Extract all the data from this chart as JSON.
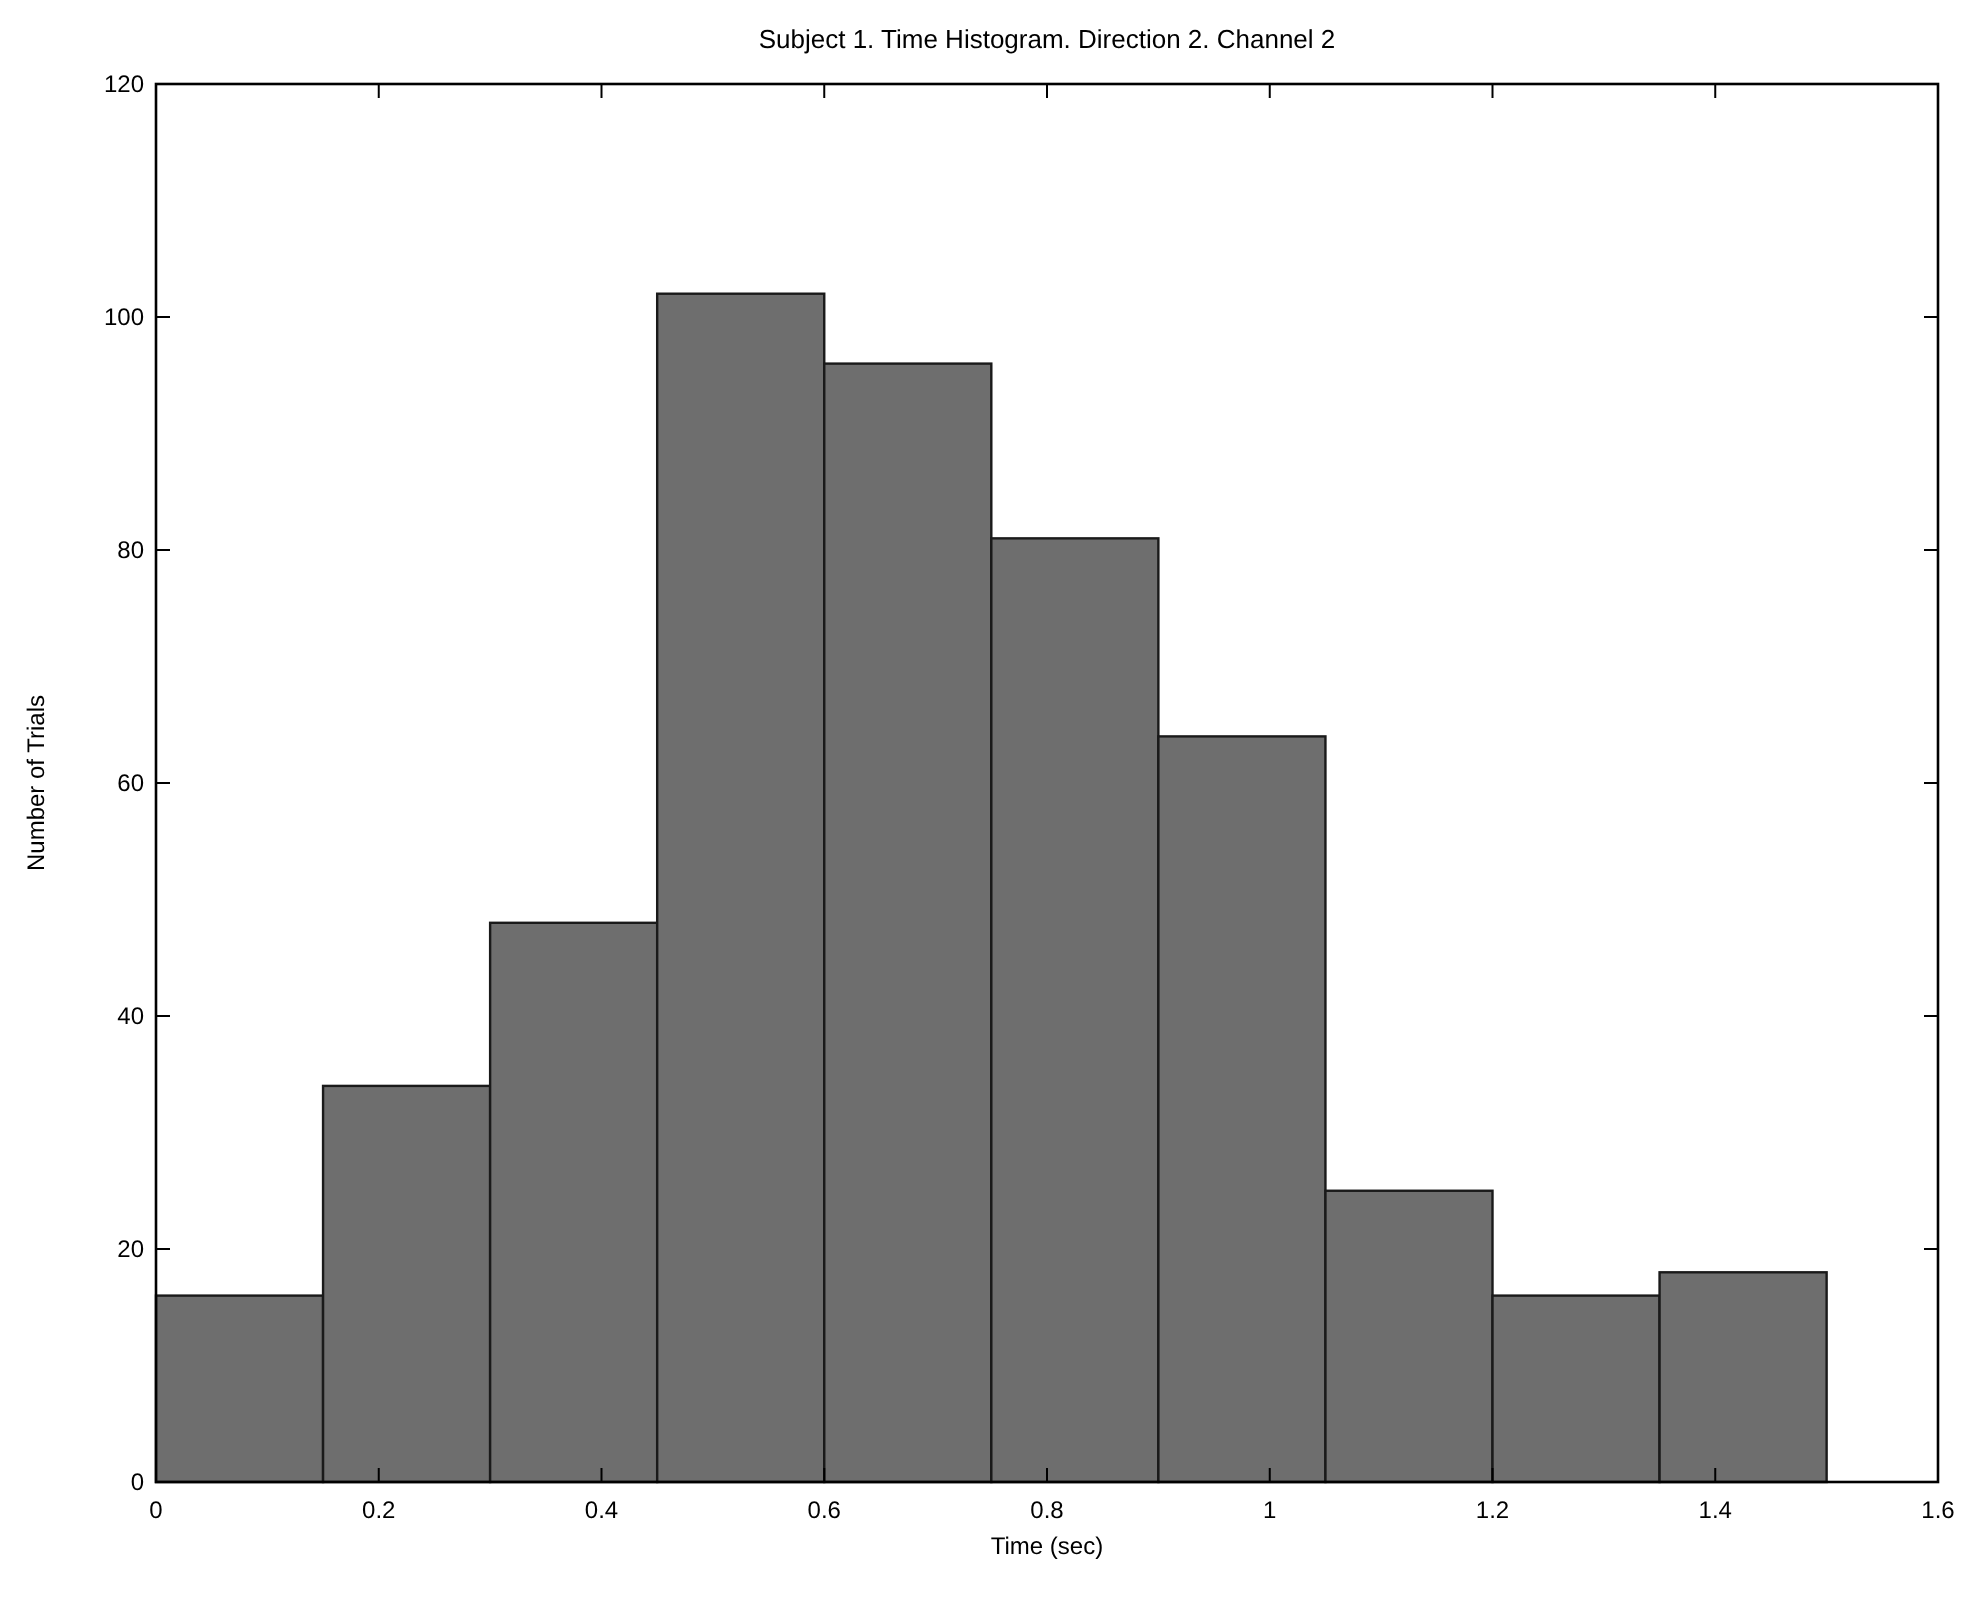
{
  "chart_data": {
    "type": "histogram",
    "title": "Subject 1. Time Histogram. Direction 2. Channel 2",
    "xlabel": "Time (sec)",
    "ylabel": "Number of Trials",
    "bins": [
      0,
      0.15,
      0.3,
      0.45,
      0.6,
      0.75,
      0.9,
      1.05,
      1.2,
      1.35,
      1.5
    ],
    "values": [
      16,
      34,
      48,
      102,
      96,
      81,
      64,
      25,
      16,
      18
    ],
    "color": "#6e6e6e",
    "xlim": [
      0,
      1.6
    ],
    "xticks": [
      0,
      0.2,
      0.4,
      0.6,
      0.8,
      1,
      1.2,
      1.4,
      1.6
    ],
    "ylim": [
      0,
      120
    ],
    "yticks": [
      0,
      20,
      40,
      60,
      80,
      100,
      120
    ]
  }
}
